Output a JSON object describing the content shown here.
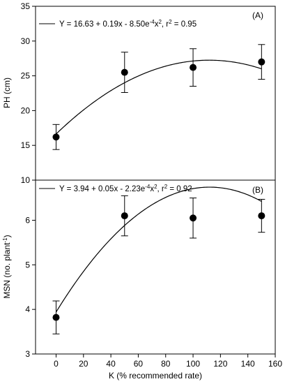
{
  "chart_data": [
    {
      "type": "scatter",
      "panel_label": "(A)",
      "ylabel": "PH (cm)",
      "xlabel": "",
      "ylim": [
        10,
        35
      ],
      "xlim": [
        -15,
        160
      ],
      "yticks": [
        10,
        15,
        20,
        25,
        30,
        35
      ],
      "legend": {
        "placement": "top-left"
      },
      "series": [
        {
          "name": "Y = 16.63 + 0.19x - 8.50e^-4x^2, r^2 = 0.95",
          "kind": "fit",
          "coefficients": {
            "a": 16.63,
            "b": 0.19,
            "c": -0.00085
          }
        },
        {
          "kind": "points",
          "x": [
            0,
            50,
            100,
            150
          ],
          "y": [
            16.2,
            25.5,
            26.2,
            27.0
          ],
          "err": [
            1.8,
            2.9,
            2.7,
            2.5
          ]
        }
      ]
    },
    {
      "type": "scatter",
      "panel_label": "(B)",
      "ylabel": "MSN (no. plant-1)",
      "xlabel": "K (% recommended rate)",
      "ylim": [
        3,
        6.9
      ],
      "xlim": [
        -15,
        160
      ],
      "yticks": [
        3,
        4,
        5,
        6
      ],
      "xticks": [
        0,
        20,
        40,
        60,
        80,
        100,
        120,
        140,
        160
      ],
      "legend": {
        "placement": "top-left"
      },
      "series": [
        {
          "name": "Y = 3.94 + 0.05x - 2.23e^-4x^2, r^2 = 0.92",
          "kind": "fit",
          "coefficients": {
            "a": 3.94,
            "b": 0.05,
            "c": -0.000223
          }
        },
        {
          "kind": "points",
          "x": [
            0,
            50,
            100,
            150
          ],
          "y": [
            3.82,
            6.1,
            6.05,
            6.1
          ],
          "err": [
            0.37,
            0.45,
            0.45,
            0.37
          ]
        }
      ]
    }
  ],
  "text": {
    "eqA": {
      "main": "Y = 16.63 + 0.19x - 8.50e",
      "sup1": "-4",
      "mid": "x",
      "sup2": "2",
      "rest": ", r",
      "sup3": "2",
      "end": " = 0.95"
    },
    "eqB": {
      "main": "Y = 3.94 + 0.05x - 2.23e",
      "sup1": "-4",
      "mid": "x",
      "sup2": "2",
      "rest": ", r",
      "sup3": "2",
      "end": " = 0.92"
    },
    "ylabelA": "PH (cm)",
    "ylabelB": {
      "main": "MSN (no. plant",
      "sup": "-1",
      "end": ")"
    }
  }
}
